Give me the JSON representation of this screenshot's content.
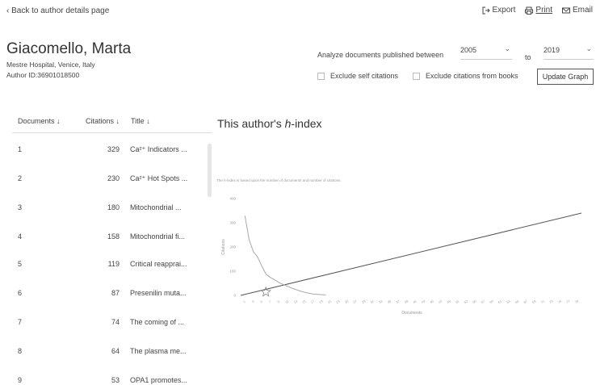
{
  "header": {
    "back_label": "Back to author details page",
    "actions": [
      {
        "label": "Export",
        "icon": "export-icon"
      },
      {
        "label": "Print",
        "icon": "print-icon"
      },
      {
        "label": "Email",
        "icon": "email-icon"
      }
    ]
  },
  "author": {
    "name": "Giacomello, Marta",
    "affiliation": "Mestre Hospital, Venice, Italy",
    "author_id": "Author ID:36901018500"
  },
  "filters": {
    "analyze_label": "Analyze documents published between",
    "from_year": "2005",
    "to_label": "to",
    "to_year": "2019",
    "exclude_self": "Exclude self citations",
    "exclude_books": "Exclude citations from books",
    "update_label": "Update Graph"
  },
  "table": {
    "headers": {
      "documents": "Documents",
      "citations": "Citations",
      "title": "Title"
    },
    "rows": [
      {
        "idx": "1",
        "cit": "329",
        "title": "Ca²⁺ Indicators ..."
      },
      {
        "idx": "2",
        "cit": "230",
        "title": "Ca²⁺ Hot Spots ..."
      },
      {
        "idx": "3",
        "cit": "180",
        "title": "Mitochondrial ..."
      },
      {
        "idx": "4",
        "cit": "158",
        "title": "Mitochondrial fi..."
      },
      {
        "idx": "5",
        "cit": "119",
        "title": "Critical reapprai..."
      },
      {
        "idx": "6",
        "cit": "87",
        "title": "Presenilin muta..."
      },
      {
        "idx": "7",
        "cit": "74",
        "title": "The coming of ..."
      },
      {
        "idx": "8",
        "cit": "64",
        "title": "The plasma me..."
      },
      {
        "idx": "9",
        "cit": "53",
        "title": "OPA1 promotes..."
      }
    ]
  },
  "chart_title": "This author's h-index",
  "chart_title_prefix": "This author's ",
  "chart_title_italic": "h",
  "chart_title_suffix": "-index",
  "chart_caption": "The h-index is based upon the number of documents and number of citations.",
  "chart_data": {
    "type": "line",
    "xlabel": "Documents",
    "ylabel": "Citations",
    "ylim": [
      0,
      400
    ],
    "yticks": [
      0,
      100,
      200,
      300,
      400
    ],
    "xticks": [
      1,
      3,
      5,
      7,
      9,
      11,
      13,
      15,
      17,
      19,
      21,
      23,
      25,
      27,
      29,
      31,
      33,
      35,
      37,
      39,
      41,
      43,
      45,
      47,
      49,
      51,
      53,
      55,
      57,
      59,
      61,
      63,
      65,
      67,
      69,
      71,
      73,
      75,
      77,
      79
    ],
    "xlim": [
      0,
      80
    ],
    "citations_curve": {
      "x": [
        1,
        2,
        3,
        4,
        5,
        6,
        7,
        8,
        9,
        10,
        11,
        12,
        13,
        14,
        15,
        16,
        17,
        18,
        20
      ],
      "y": [
        329,
        230,
        180,
        158,
        119,
        87,
        74,
        64,
        53,
        45,
        38,
        30,
        24,
        18,
        13,
        9,
        6,
        4,
        2
      ]
    },
    "documents_line": {
      "x": [
        0,
        80
      ],
      "y": [
        0,
        340
      ]
    },
    "h_index": 13,
    "grid": false
  },
  "colors": {
    "citations_curve": "#a8a8a8",
    "documents_line": "#555555",
    "marker": "#888888"
  }
}
